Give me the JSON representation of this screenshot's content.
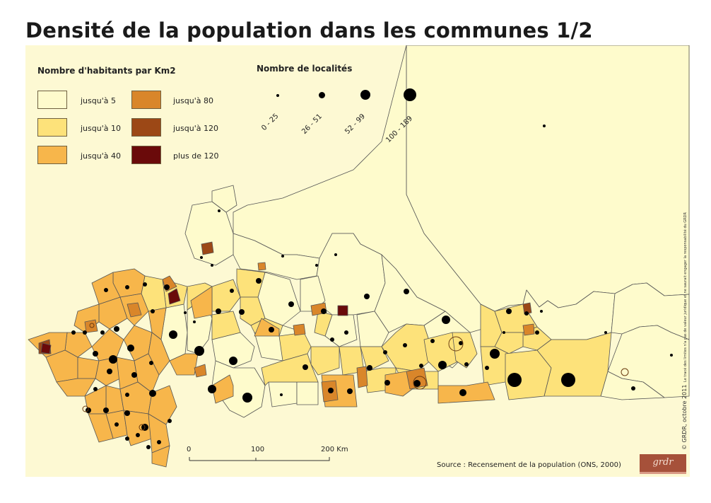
{
  "title": "Densité de la population dans les communes 1/2",
  "colors": {
    "map_background": "#fdf9d3",
    "class_1": "#fefbcc",
    "class_2": "#fde27a",
    "class_3": "#f7b64b",
    "class_4": "#d9862a",
    "class_5": "#9c4816",
    "class_6": "#6a0a0a",
    "border": "#555555",
    "dot": "#000000"
  },
  "legend_density": {
    "title": "Nombre d'habitants par Km2",
    "items": [
      {
        "label": "jusqu'à 5",
        "color": "#fefbcc"
      },
      {
        "label": "jusqu'à 10",
        "color": "#fde27a"
      },
      {
        "label": "jusqu'à 40",
        "color": "#f7b64b"
      },
      {
        "label": "jusqu'à 80",
        "color": "#d9862a"
      },
      {
        "label": "jusqu'à 120",
        "color": "#9c4816"
      },
      {
        "label": "plus de 120",
        "color": "#6a0a0a"
      }
    ]
  },
  "legend_localities": {
    "title": "Nombre de localités",
    "items": [
      {
        "label": "0 - 25"
      },
      {
        "label": "26 - 51"
      },
      {
        "label": "52 - 99"
      },
      {
        "label": "100 - 189"
      }
    ]
  },
  "scale": {
    "ticks": [
      "0",
      "100",
      "200 Km"
    ]
  },
  "source": "Source : Recensement de la population (ONS, 2000)",
  "credit": "© GRDR, octobre 2011",
  "disclaimer": "Le tracé des limites n'a pas de valeur juridique et ne saurait engager la responsabilité du GRDR",
  "logo_text": "grdr"
}
